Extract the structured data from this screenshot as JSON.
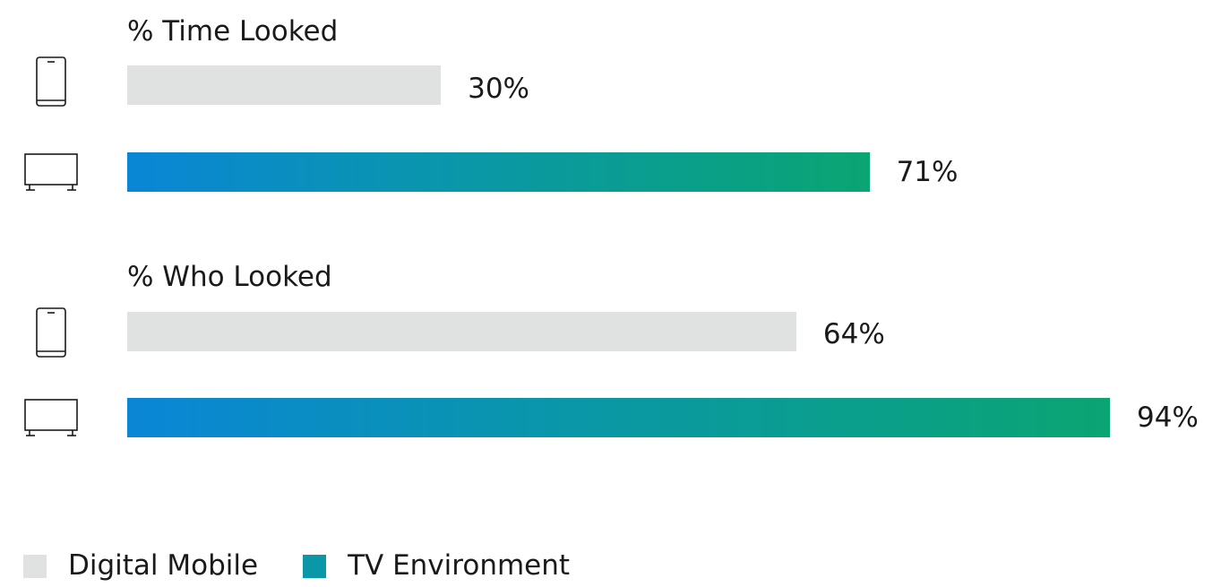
{
  "chart_data": {
    "type": "bar",
    "orientation": "horizontal",
    "xlim": [
      0,
      100
    ],
    "groups": [
      {
        "title": "% Time Looked",
        "bars": [
          {
            "series": "Digital Mobile",
            "icon": "phone-icon",
            "value": 30,
            "label": "30%"
          },
          {
            "series": "TV Environment",
            "icon": "tv-icon",
            "value": 71,
            "label": "71%"
          }
        ]
      },
      {
        "title": "% Who Looked",
        "bars": [
          {
            "series": "Digital Mobile",
            "icon": "phone-icon",
            "value": 64,
            "label": "64%"
          },
          {
            "series": "TV Environment",
            "icon": "tv-icon",
            "value": 94,
            "label": "94%"
          }
        ]
      }
    ],
    "legend": {
      "position": "bottom-left",
      "items": [
        {
          "label": "Digital Mobile",
          "color": "#e0e1e1"
        },
        {
          "label": "TV Environment",
          "color": "#0a97a8"
        }
      ]
    },
    "colors": {
      "mobile_bar": "#e0e1e1",
      "tv_gradient_start": "#0a86d6",
      "tv_gradient_end": "#0aa572"
    }
  }
}
